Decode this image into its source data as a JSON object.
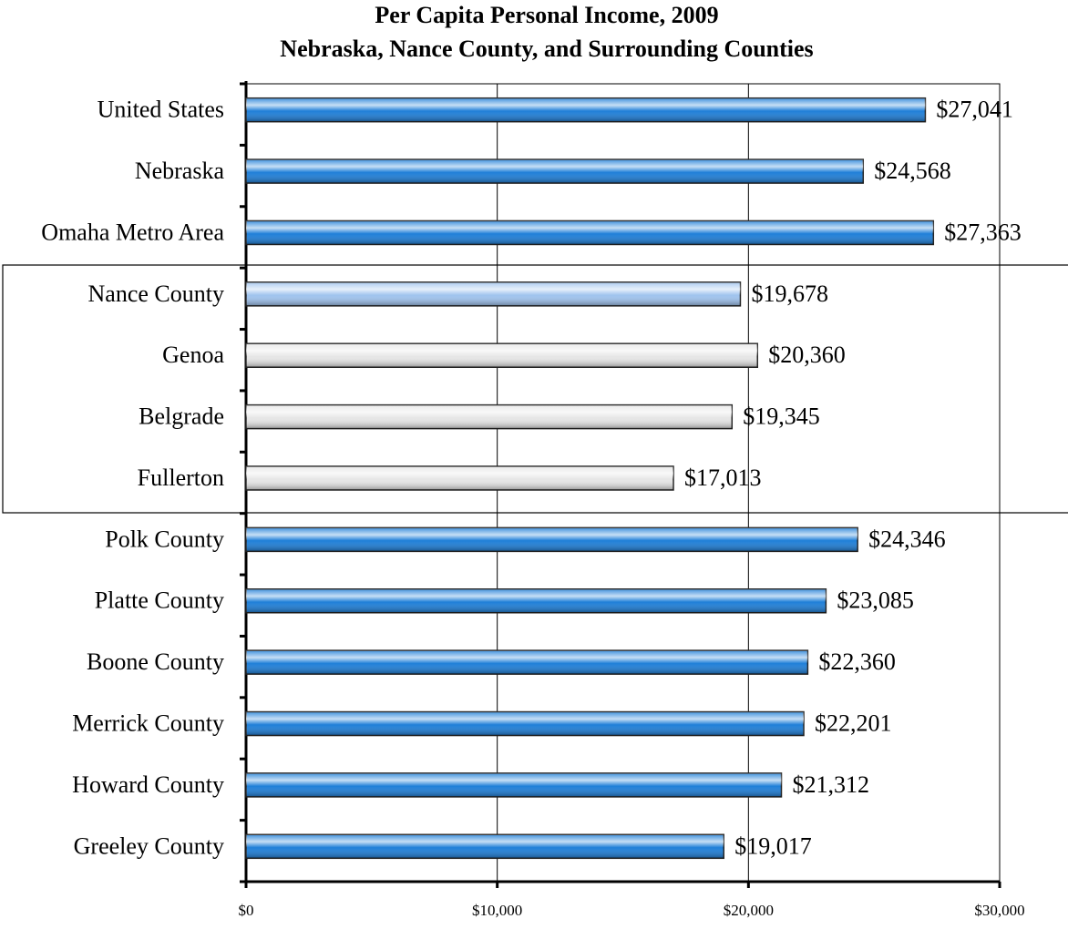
{
  "chart_data": {
    "type": "barh",
    "title": "Per Capita Personal Income, 2009",
    "subtitle": "Nebraska, Nance County, and Surrounding Counties",
    "categories": [
      "United States",
      "Nebraska",
      "Omaha Metro Area",
      "Nance County",
      "Genoa",
      "Belgrade",
      "Fullerton",
      "Polk County",
      "Platte County",
      "Boone County",
      "Merrick County",
      "Howard County",
      "Greeley County"
    ],
    "values": [
      27041,
      24568,
      27363,
      19678,
      20360,
      19345,
      17013,
      24346,
      23085,
      22360,
      22201,
      21312,
      19017
    ],
    "value_labels": [
      "$27,041",
      "$24,568",
      "$27,363",
      "$19,678",
      "$20,360",
      "$19,345",
      "$17,013",
      "$24,346",
      "$23,085",
      "$22,360",
      "$22,201",
      "$21,312",
      "$19,017"
    ],
    "colors": [
      "#1f7fd8",
      "#1f7fd8",
      "#1f7fd8",
      "#9fc3ee",
      "#e6e6e6",
      "#e6e6e6",
      "#e6e6e6",
      "#1f7fd8",
      "#1f7fd8",
      "#1f7fd8",
      "#1f7fd8",
      "#1f7fd8",
      "#1f7fd8"
    ],
    "xlim": [
      0,
      30000
    ],
    "xticks": [
      {
        "value": 0,
        "label": "$0"
      },
      {
        "value": 10000,
        "label": "$10,000"
      },
      {
        "value": 20000,
        "label": "$20,000"
      },
      {
        "value": 30000,
        "label": "$30,000"
      }
    ],
    "grid": true
  }
}
